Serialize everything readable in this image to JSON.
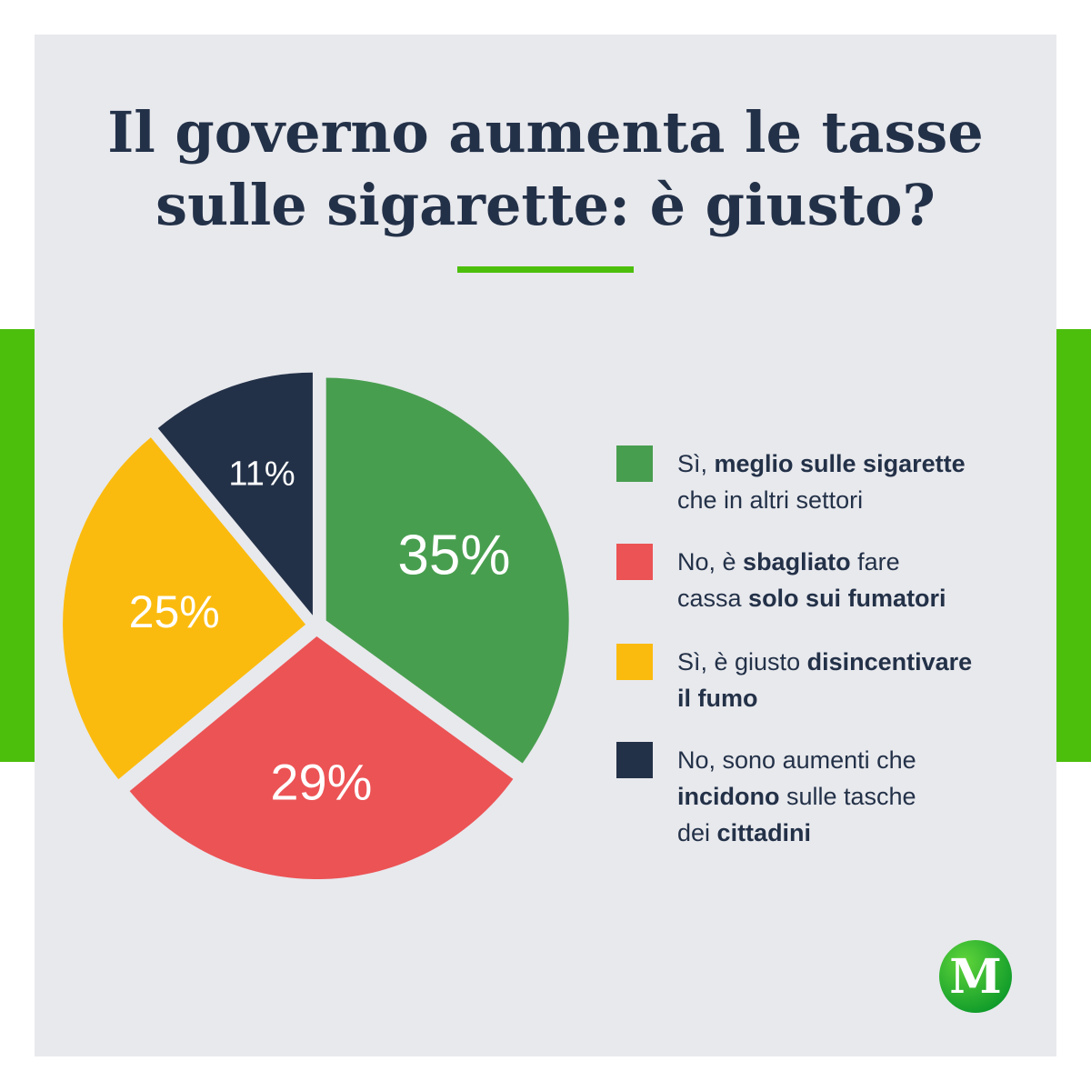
{
  "title": {
    "line1": "Il governo aumenta le tasse",
    "line2": "sulle sigarette: è giusto?"
  },
  "chart_data": {
    "type": "pie",
    "title": "Il governo aumenta le tasse sulle sigarette: è giusto?",
    "categories": [
      "Sì, meglio sulle sigarette che in altri settori",
      "No, è sbagliato fare cassa solo sui fumatori",
      "Sì, è giusto disincentivare il fumo",
      "No, sono aumenti che incidono sulle tasche dei cittadini"
    ],
    "values": [
      35,
      29,
      25,
      11
    ],
    "labels": [
      "35%",
      "29%",
      "25%",
      "11%"
    ],
    "colors": [
      "#489e4f",
      "#ec5355",
      "#fbbb0e",
      "#233148"
    ],
    "legend_position": "right",
    "start": "top, clockwise",
    "exploded": true
  },
  "legend": [
    {
      "color": "#489e4f",
      "lines": [
        [
          {
            "t": "Sì, ",
            "b": false
          },
          {
            "t": "meglio sulle sigarette",
            "b": true
          }
        ],
        [
          {
            "t": "che in altri settori",
            "b": false
          }
        ]
      ]
    },
    {
      "color": "#ec5355",
      "lines": [
        [
          {
            "t": "No, è ",
            "b": false
          },
          {
            "t": "sbagliato",
            "b": true
          },
          {
            "t": " fare",
            "b": false
          }
        ],
        [
          {
            "t": "cassa ",
            "b": false
          },
          {
            "t": "solo sui fumatori",
            "b": true
          }
        ]
      ]
    },
    {
      "color": "#fbbb0e",
      "lines": [
        [
          {
            "t": "Sì, è giusto ",
            "b": false
          },
          {
            "t": "disincentivare",
            "b": true
          }
        ],
        [
          {
            "t": "il fumo",
            "b": true
          }
        ]
      ]
    },
    {
      "color": "#233148",
      "lines": [
        [
          {
            "t": "No, sono aumenti che",
            "b": false
          }
        ],
        [
          {
            "t": "incidono",
            "b": true
          },
          {
            "t": " sulle tasche",
            "b": false
          }
        ],
        [
          {
            "t": "dei ",
            "b": false
          },
          {
            "t": "cittadini",
            "b": true
          }
        ]
      ]
    }
  ],
  "logo": {
    "letter": "M",
    "colors": [
      "#5fd43a",
      "#0e9a2a"
    ]
  }
}
